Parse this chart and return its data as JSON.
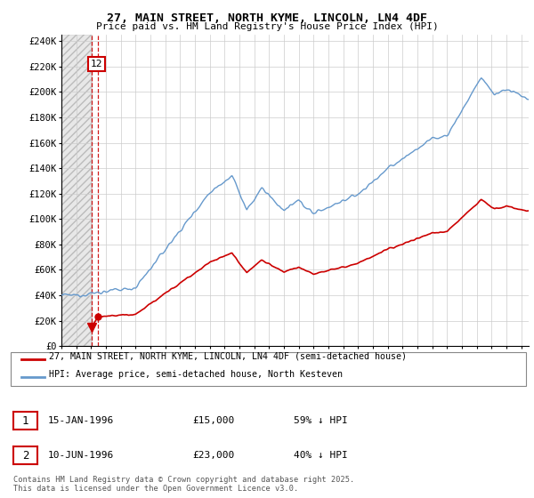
{
  "title": "27, MAIN STREET, NORTH KYME, LINCOLN, LN4 4DF",
  "subtitle": "Price paid vs. HM Land Registry's House Price Index (HPI)",
  "legend_line1": "27, MAIN STREET, NORTH KYME, LINCOLN, LN4 4DF (semi-detached house)",
  "legend_line2": "HPI: Average price, semi-detached house, North Kesteven",
  "footer": "Contains HM Land Registry data © Crown copyright and database right 2025.\nThis data is licensed under the Open Government Licence v3.0.",
  "table_rows": [
    [
      "1",
      "15-JAN-1996",
      "£15,000",
      "59% ↓ HPI"
    ],
    [
      "2",
      "10-JUN-1996",
      "£23,000",
      "40% ↓ HPI"
    ]
  ],
  "price_color": "#cc0000",
  "hpi_color": "#6699cc",
  "ylim": [
    0,
    245000
  ],
  "xlim_start": 1994.0,
  "xlim_end": 2025.5,
  "sale1_x": 1996.04,
  "sale1_y": 15000,
  "sale2_x": 1996.46,
  "sale2_y": 23000,
  "yticks": [
    0,
    20000,
    40000,
    60000,
    80000,
    100000,
    120000,
    140000,
    160000,
    180000,
    200000,
    220000,
    240000
  ],
  "ylabels": [
    "£0",
    "£20K",
    "£40K",
    "£60K",
    "£80K",
    "£100K",
    "£120K",
    "£140K",
    "£160K",
    "£180K",
    "£200K",
    "£220K",
    "£240K"
  ]
}
